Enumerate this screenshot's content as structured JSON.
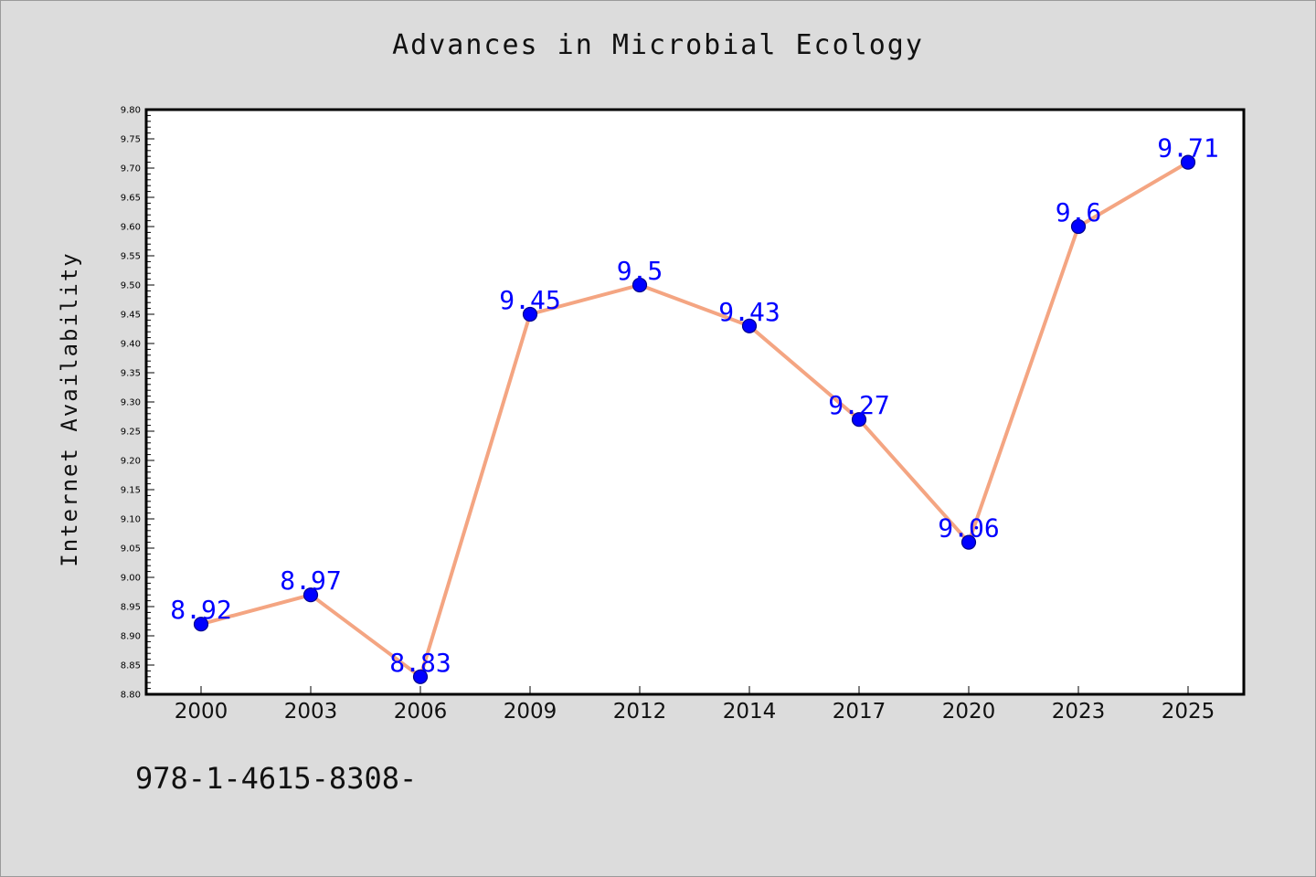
{
  "chart_data": {
    "type": "line",
    "title": "Advances in Microbial Ecology",
    "xlabel": "",
    "ylabel": "Internet Availability",
    "categories": [
      "2000",
      "2003",
      "2006",
      "2009",
      "2012",
      "2014",
      "2017",
      "2020",
      "2023",
      "2025"
    ],
    "series": [
      {
        "values": [
          8.92,
          8.97,
          8.83,
          9.45,
          9.5,
          9.43,
          9.27,
          9.06,
          9.6,
          9.71
        ]
      }
    ],
    "data_labels": [
      "8.92",
      "8.97",
      "8.83",
      "9.45",
      "9.5",
      "9.43",
      "9.27",
      "9.06",
      "9.6",
      "9.71"
    ],
    "ylim": [
      8.8,
      9.8
    ],
    "yticks": [
      "8.80",
      "8.85",
      "8.90",
      "8.95",
      "9.00",
      "9.05",
      "9.10",
      "9.15",
      "9.20",
      "9.25",
      "9.30",
      "9.35",
      "9.40",
      "9.45",
      "9.50",
      "9.55",
      "9.60",
      "9.65",
      "9.70",
      "9.75",
      "9.80"
    ],
    "grid": false,
    "legend": "none",
    "colors": {
      "line": "#f4a582",
      "marker": "#0000ff",
      "marker_edge": "#00008b",
      "data_label": "#0000ff",
      "plot_bg": "#ffffff",
      "page_bg": "#dcdcdc"
    }
  },
  "footnote": "978-1-4615-8308-"
}
